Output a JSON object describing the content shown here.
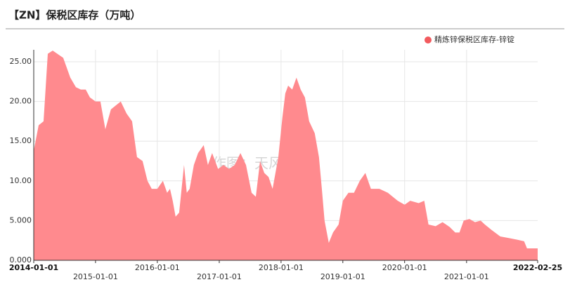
{
  "chart_data": {
    "type": "area",
    "title": "【ZN】保税区库存（万吨）",
    "watermark": "作图：天风期货",
    "x": [
      "2014-01-01",
      "2014-01-30",
      "2014-02-28",
      "2014-03-25",
      "2014-04-23",
      "2014-06-24",
      "2014-08-05",
      "2014-09-07",
      "2014-10-06",
      "2014-11-04",
      "2014-11-29",
      "2015-01-01",
      "2015-01-30",
      "2015-02-28",
      "2015-04-02",
      "2015-05-30",
      "2015-07-03",
      "2015-08-05",
      "2015-09-03",
      "2015-10-06",
      "2015-11-04",
      "2015-11-29",
      "2016-01-01",
      "2016-02-03",
      "2016-02-28",
      "2016-03-16",
      "2016-04-01",
      "2016-04-18",
      "2016-05-09",
      "2016-05-21",
      "2016-06-07",
      "2016-06-23",
      "2016-07-10",
      "2016-08-04",
      "2016-08-29",
      "2016-10-01",
      "2016-10-26",
      "2016-11-20",
      "2016-12-25",
      "2017-01-26",
      "2017-02-28",
      "2017-04-02",
      "2017-05-06",
      "2017-06-08",
      "2017-07-11",
      "2017-08-05",
      "2017-08-30",
      "2017-09-24",
      "2017-10-19",
      "2017-11-12",
      "2017-12-16",
      "2018-01-09",
      "2018-01-26",
      "2018-02-12",
      "2018-03-08",
      "2018-04-02",
      "2018-04-27",
      "2018-05-22",
      "2018-06-16",
      "2018-07-19",
      "2018-08-13",
      "2018-08-30",
      "2018-09-15",
      "2018-10-10",
      "2018-11-04",
      "2018-12-07",
      "2019-01-01",
      "2019-02-03",
      "2019-03-08",
      "2019-04-11",
      "2019-05-14",
      "2019-06-16",
      "2019-08-05",
      "2019-09-24",
      "2019-11-21",
      "2020-01-01",
      "2020-02-03",
      "2020-03-24",
      "2020-04-26",
      "2020-05-21",
      "2020-07-02",
      "2020-08-12",
      "2020-09-23",
      "2020-10-26",
      "2020-11-20",
      "2020-12-15",
      "2021-01-18",
      "2021-02-20",
      "2021-03-25",
      "2021-04-19",
      "2021-05-30",
      "2021-07-19",
      "2021-09-07",
      "2021-10-27",
      "2021-12-07",
      "2021-12-24",
      "2022-02-25"
    ],
    "series": [
      {
        "name": "精炼锌保税区库存-锌锭",
        "color": "#ff8a8e",
        "values": [
          13.8,
          17,
          17.5,
          26,
          26.4,
          25.5,
          23,
          21.8,
          21.5,
          21.5,
          20.5,
          20,
          20,
          16.5,
          19,
          20,
          18.5,
          17.5,
          13,
          12.5,
          10,
          9,
          9,
          10,
          8.5,
          9,
          7.5,
          5.5,
          6,
          8.5,
          12,
          8.5,
          9,
          12,
          13.5,
          14.5,
          12,
          13.5,
          11.5,
          12,
          11.5,
          12,
          13.5,
          12,
          8.5,
          8,
          12.5,
          11,
          10.5,
          9,
          13,
          18,
          21,
          22,
          21.5,
          23,
          21.5,
          20.5,
          17.5,
          16,
          13,
          9,
          5,
          2.2,
          3.5,
          4.5,
          7.5,
          8.5,
          8.5,
          10,
          11,
          9,
          9,
          8.5,
          7.5,
          7,
          7.5,
          7.2,
          7.5,
          4.5,
          4.3,
          4.8,
          4.2,
          3.5,
          3.5,
          5,
          5.2,
          4.8,
          5,
          4.5,
          3.8,
          3,
          2.8,
          2.6,
          2.4,
          1.5,
          1.5
        ]
      }
    ],
    "xlim": [
      "2014-01-01",
      "2022-02-25"
    ],
    "xticks": [
      "2014-01-01",
      "2015-01-01",
      "2016-01-01",
      "2017-01-01",
      "2018-01-01",
      "2019-01-01",
      "2020-01-01",
      "2021-01-01",
      "2022-02-25"
    ],
    "ylim": [
      0,
      26.5
    ],
    "yticks": [
      {
        "value": 0,
        "label": "0.000"
      },
      {
        "value": 5,
        "label": "5.000"
      },
      {
        "value": 10,
        "label": "10.00"
      },
      {
        "value": 15,
        "label": "15.00"
      },
      {
        "value": 20,
        "label": "20.00"
      },
      {
        "value": 25,
        "label": "25.00"
      }
    ],
    "grid": true,
    "legend": "top-right"
  }
}
